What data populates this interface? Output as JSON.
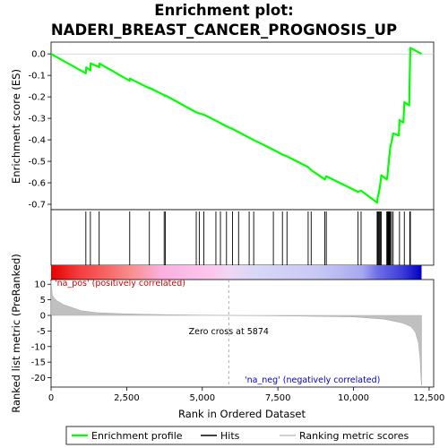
{
  "chart_data": {
    "type": "line",
    "title_line1": "Enrichment plot:",
    "title_line2": "NADERI_BREAST_CANCER_PROGNOSIS_UP",
    "xlabel": "Rank in Ordered Dataset",
    "xlim": [
      0,
      12650
    ],
    "x_ticks": [
      0,
      2500,
      5000,
      7500,
      10000,
      12500
    ],
    "x_tick_labels": [
      "0",
      "2,500",
      "5,000",
      "7,500",
      "10,000",
      "12,500"
    ],
    "es_panel": {
      "ylabel": "Enrichment score (ES)",
      "ylim": [
        -0.725,
        0.055
      ],
      "y_ticks": [
        0.0,
        -0.1,
        -0.2,
        -0.3,
        -0.4,
        -0.5,
        -0.6,
        -0.7
      ],
      "y_tick_labels": [
        "0.0",
        "-0.1",
        "-0.2",
        "-0.3",
        "-0.4",
        "-0.5",
        "-0.6",
        "-0.7"
      ],
      "color": "#00ff00",
      "profile": [
        [
          0,
          0.0
        ],
        [
          1150,
          -0.09
        ],
        [
          1160,
          -0.063
        ],
        [
          1300,
          -0.077
        ],
        [
          1310,
          -0.044
        ],
        [
          1590,
          -0.062
        ],
        [
          1600,
          -0.045
        ],
        [
          2600,
          -0.125
        ],
        [
          2610,
          -0.115
        ],
        [
          3250,
          -0.16
        ],
        [
          3260,
          -0.158
        ],
        [
          3740,
          -0.192
        ],
        [
          3760,
          -0.196
        ],
        [
          3780,
          -0.193
        ],
        [
          4800,
          -0.272
        ],
        [
          4900,
          -0.277
        ],
        [
          5050,
          -0.283
        ],
        [
          5450,
          -0.311
        ],
        [
          5600,
          -0.322
        ],
        [
          5800,
          -0.337
        ],
        [
          6000,
          -0.349
        ],
        [
          6200,
          -0.364
        ],
        [
          6550,
          -0.39
        ],
        [
          6700,
          -0.401
        ],
        [
          7350,
          -0.446
        ],
        [
          7650,
          -0.469
        ],
        [
          7800,
          -0.477
        ],
        [
          8500,
          -0.527
        ],
        [
          8600,
          -0.541
        ],
        [
          9050,
          -0.584
        ],
        [
          9100,
          -0.57
        ],
        [
          10150,
          -0.642
        ],
        [
          10250,
          -0.637
        ],
        [
          10780,
          -0.692
        ],
        [
          10800,
          -0.665
        ],
        [
          10830,
          -0.652
        ],
        [
          10860,
          -0.628
        ],
        [
          10890,
          -0.6
        ],
        [
          10920,
          -0.565
        ],
        [
          11100,
          -0.584
        ],
        [
          11120,
          -0.57
        ],
        [
          11140,
          -0.539
        ],
        [
          11160,
          -0.513
        ],
        [
          11180,
          -0.48
        ],
        [
          11200,
          -0.455
        ],
        [
          11220,
          -0.43
        ],
        [
          11260,
          -0.41
        ],
        [
          11310,
          -0.37
        ],
        [
          11500,
          -0.38
        ],
        [
          11520,
          -0.308
        ],
        [
          11650,
          -0.32
        ],
        [
          11680,
          -0.225
        ],
        [
          11840,
          -0.24
        ],
        [
          11860,
          -0.105
        ],
        [
          11880,
          0.028
        ],
        [
          12250,
          0.0
        ]
      ]
    },
    "hits": [
      1150,
      1300,
      1590,
      2600,
      3250,
      3740,
      3780,
      4800,
      4900,
      5050,
      5450,
      5600,
      5800,
      6000,
      6200,
      6550,
      6700,
      7350,
      7650,
      7800,
      8500,
      8600,
      9050,
      9100,
      10150,
      10250,
      10780,
      10800,
      10830,
      10860,
      10890,
      10920,
      11100,
      11120,
      11140,
      11160,
      11180,
      11200,
      11220,
      11260,
      11310,
      11520,
      11680,
      11860,
      11880
    ],
    "metric_panel": {
      "ylabel": "Ranked list metric (PreRanked)",
      "ylim": [
        -23,
        11.5
      ],
      "y_ticks": [
        10,
        5,
        0,
        -5,
        -10,
        -15,
        -20
      ],
      "y_tick_labels": [
        "10",
        "5",
        "0",
        "-5",
        "-10",
        "-15",
        "-20"
      ],
      "fill_color": "#c0c0c0",
      "metric": [
        [
          0,
          11
        ],
        [
          40,
          6.5
        ],
        [
          150,
          5
        ],
        [
          400,
          3.5
        ],
        [
          700,
          2.5
        ],
        [
          1000,
          1.5
        ],
        [
          1500,
          0.9
        ],
        [
          2500,
          0.5
        ],
        [
          4000,
          0.2
        ],
        [
          5874,
          0
        ],
        [
          8000,
          -0.2
        ],
        [
          10000,
          -0.5
        ],
        [
          11000,
          -1.2
        ],
        [
          11600,
          -2.4
        ],
        [
          11900,
          -3.6
        ],
        [
          12050,
          -5.5
        ],
        [
          12150,
          -9
        ],
        [
          12200,
          -14
        ],
        [
          12230,
          -20
        ],
        [
          12250,
          -22.5
        ]
      ],
      "zero_cross_label": "Zero cross at 5874",
      "zero_cross": 5874,
      "pos_label": "'na_pos' (positively correlated)",
      "neg_label": "'na_neg' (negatively correlated)",
      "pos_color": "#cc0000",
      "neg_color": "#0000cc"
    },
    "legend": {
      "placement": "bottom",
      "entries": [
        {
          "label": "Enrichment profile",
          "color": "#00ff00"
        },
        {
          "label": "Hits",
          "color": "#000000"
        },
        {
          "label": "Ranking metric scores",
          "color": "#c0c0c0"
        }
      ]
    }
  }
}
